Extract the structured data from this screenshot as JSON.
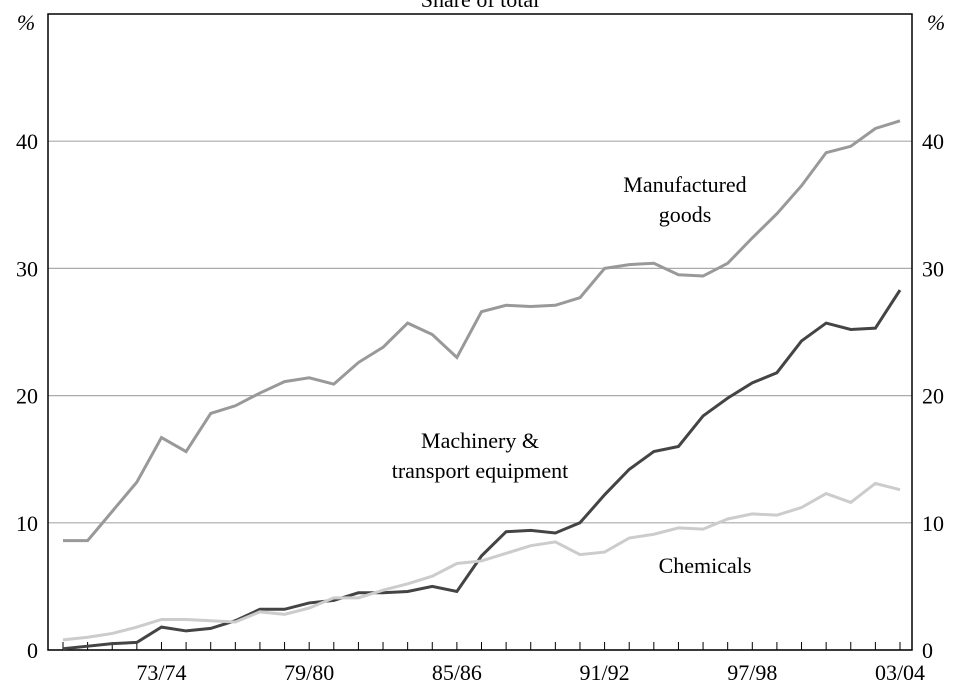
{
  "chart_data": {
    "type": "line",
    "title": "Share of total",
    "unit": "%",
    "categories": [
      null,
      null,
      null,
      null,
      "73/74",
      null,
      null,
      null,
      null,
      null,
      "79/80",
      null,
      null,
      null,
      null,
      null,
      "85/86",
      null,
      null,
      null,
      null,
      null,
      "91/92",
      null,
      null,
      null,
      null,
      null,
      "97/98",
      null,
      null,
      null,
      null,
      null,
      "03/04"
    ],
    "series": [
      {
        "name": "Manufactured goods",
        "color": "#999999",
        "values": [
          8.6,
          8.6,
          10.9,
          13.2,
          16.7,
          15.6,
          18.6,
          19.2,
          20.2,
          21.1,
          21.4,
          20.9,
          22.6,
          23.8,
          25.7,
          24.8,
          23.0,
          26.6,
          27.1,
          27.0,
          27.1,
          27.7,
          30.0,
          30.3,
          30.4,
          29.5,
          29.4,
          30.4,
          32.4,
          34.3,
          36.5,
          39.1,
          39.6,
          41.0,
          41.6
        ]
      },
      {
        "name": "Machinery & transport equipment",
        "color": "#444444",
        "values": [
          0.1,
          0.3,
          0.5,
          0.6,
          1.8,
          1.5,
          1.7,
          2.3,
          3.2,
          3.2,
          3.7,
          3.9,
          4.5,
          4.5,
          4.6,
          5.0,
          4.6,
          7.4,
          9.3,
          9.4,
          9.2,
          10.0,
          12.2,
          14.2,
          15.6,
          16.0,
          18.4,
          19.8,
          21.0,
          21.8,
          24.3,
          25.7,
          25.2,
          25.3,
          28.3
        ]
      },
      {
        "name": "Chemicals",
        "color": "#cccccc",
        "values": [
          0.8,
          1.0,
          1.3,
          1.8,
          2.4,
          2.4,
          2.3,
          2.2,
          3.0,
          2.8,
          3.3,
          4.1,
          4.1,
          4.7,
          5.2,
          5.8,
          6.8,
          7.0,
          7.6,
          8.2,
          8.5,
          7.5,
          7.7,
          8.8,
          9.1,
          9.6,
          9.5,
          10.3,
          10.7,
          10.6,
          11.2,
          12.3,
          11.6,
          13.1,
          12.6
        ]
      }
    ],
    "annotations": [
      [
        "Manufactured",
        "goods"
      ],
      [
        "Machinery &",
        "transport equipment"
      ],
      [
        "Chemicals"
      ]
    ],
    "ylim": [
      0,
      50
    ],
    "yticks": [
      0,
      10,
      20,
      30,
      40
    ],
    "grid": true
  }
}
